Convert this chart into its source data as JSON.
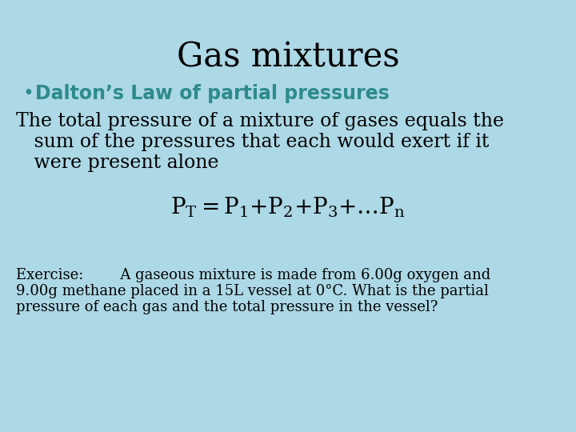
{
  "title": "Gas mixtures",
  "title_fontsize": 30,
  "title_color": "#000000",
  "background_color": "#add8e6",
  "bullet_char": "•",
  "bullet_text": "Dalton’s Law of partial pressures",
  "bullet_color": "#2e8b8b",
  "bullet_fontsize": 17,
  "body_line1": "The total pressure of a mixture of gases equals the",
  "body_line2": "   sum of the pressures that each would exert if it",
  "body_line3": "   were present alone",
  "body_fontsize": 17,
  "body_color": "#000000",
  "formula_fontsize": 20,
  "formula_color": "#000000",
  "exercise_line1": "Exercise:        A gaseous mixture is made from 6.00g oxygen and",
  "exercise_line2": "9.00g methane placed in a 15L vessel at 0°C. What is the partial",
  "exercise_line3": "pressure of each gas and the total pressure in the vessel?",
  "exercise_fontsize": 13,
  "exercise_color": "#000000"
}
